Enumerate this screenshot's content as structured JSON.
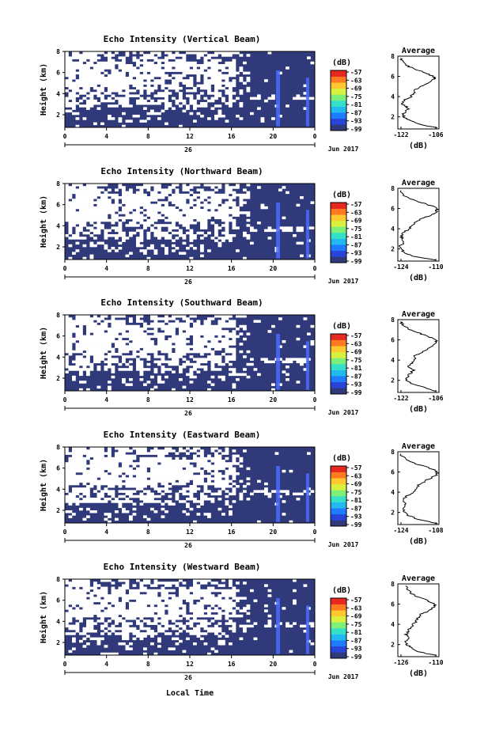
{
  "figure": {
    "xlabel": "Local Time",
    "date_label": "Jun 2017",
    "colors": {
      "background_echo": "#303a7a",
      "strong_echo": "#4a6cff",
      "line": "#000000",
      "colorscale": [
        "#303a7a",
        "#2945d8",
        "#1f7cff",
        "#22b8f0",
        "#35e0c8",
        "#7df07a",
        "#d8f040",
        "#ffc830",
        "#ff7a20",
        "#e8281e"
      ]
    }
  },
  "chart_data": [
    {
      "type": "heatmap",
      "title": "Echo Intensity (Vertical Beam)",
      "ylabel": "Height (km)",
      "x_ticks": [
        "0",
        "4",
        "8",
        "12",
        "16",
        "20",
        "0"
      ],
      "day_label": "26",
      "y_ticks": [
        "2",
        "4",
        "6",
        "8"
      ],
      "ylim": [
        0.8,
        8
      ],
      "colorbar": {
        "label": "(dB)",
        "ticks": [
          "-57",
          "-63",
          "-69",
          "-75",
          "-81",
          "-87",
          "-93",
          "-99"
        ]
      },
      "profile": {
        "title": "Average",
        "xlabel": "(dB)",
        "xlim": [
          -122,
          -106
        ],
        "x_ticks": [
          "-122",
          "-106"
        ],
        "y_ticks": [
          "2",
          "4",
          "6",
          "8"
        ],
        "height": [
          0.9,
          1.3,
          1.7,
          2.0,
          2.3,
          2.7,
          3.0,
          3.3,
          3.7,
          4.0,
          4.3,
          4.7,
          5.0,
          5.3,
          5.7,
          5.9,
          6.2,
          6.5,
          6.8,
          7.1,
          7.5,
          7.8
        ],
        "values": [
          -106.5,
          -114,
          -118,
          -119.5,
          -120,
          -118,
          -118.5,
          -120.5,
          -119,
          -117,
          -116,
          -115,
          -113,
          -110,
          -108,
          -107.5,
          -110,
          -113,
          -116,
          -119,
          -120.5,
          -121
        ]
      }
    },
    {
      "type": "heatmap",
      "title": "Echo Intensity (Northward Beam)",
      "ylabel": "Height (km)",
      "x_ticks": [
        "0",
        "4",
        "8",
        "12",
        "16",
        "20",
        "0"
      ],
      "day_label": "26",
      "y_ticks": [
        "2",
        "4",
        "6",
        "8"
      ],
      "ylim": [
        0.8,
        8
      ],
      "colorbar": {
        "label": "(dB)",
        "ticks": [
          "-57",
          "-63",
          "-69",
          "-75",
          "-81",
          "-87",
          "-93",
          "-99"
        ]
      },
      "profile": {
        "title": "Average",
        "xlabel": "(dB)",
        "xlim": [
          -124,
          -110
        ],
        "x_ticks": [
          "-124",
          "-110"
        ],
        "y_ticks": [
          "2",
          "4",
          "6",
          "8"
        ],
        "height": [
          0.9,
          1.3,
          1.7,
          2.0,
          2.3,
          2.7,
          3.0,
          3.3,
          3.7,
          4.0,
          4.3,
          4.7,
          5.0,
          5.3,
          5.7,
          5.9,
          6.2,
          6.5,
          6.8,
          7.1,
          7.5,
          7.8
        ],
        "values": [
          -111,
          -119,
          -122,
          -122.5,
          -123,
          -122,
          -122.5,
          -123,
          -122,
          -120,
          -119,
          -118,
          -116,
          -113,
          -111,
          -110.5,
          -112,
          -115,
          -118,
          -121,
          -122.5,
          -123
        ]
      }
    },
    {
      "type": "heatmap",
      "title": "Echo Intensity (Southward Beam)",
      "ylabel": "Height (km)",
      "x_ticks": [
        "0",
        "4",
        "8",
        "12",
        "16",
        "20",
        "0"
      ],
      "day_label": "26",
      "y_ticks": [
        "2",
        "4",
        "6",
        "8"
      ],
      "ylim": [
        0.8,
        8
      ],
      "colorbar": {
        "label": "(dB)",
        "ticks": [
          "-57",
          "-63",
          "-69",
          "-75",
          "-81",
          "-87",
          "-93",
          "-99"
        ]
      },
      "profile": {
        "title": "Average",
        "xlabel": "(dB)",
        "xlim": [
          -122,
          -106
        ],
        "x_ticks": [
          "-122",
          "-106"
        ],
        "y_ticks": [
          "2",
          "4",
          "6",
          "8"
        ],
        "height": [
          0.9,
          1.3,
          1.7,
          2.0,
          2.3,
          2.7,
          3.0,
          3.3,
          3.7,
          4.0,
          4.3,
          4.7,
          5.0,
          5.3,
          5.7,
          5.9,
          6.2,
          6.5,
          6.8,
          7.1,
          7.5,
          7.8
        ],
        "values": [
          -107,
          -112,
          -117,
          -119,
          -118.5,
          -117,
          -116,
          -118,
          -116.5,
          -115,
          -116,
          -113,
          -111,
          -109,
          -107.5,
          -107,
          -109,
          -112,
          -115,
          -118,
          -120,
          -121
        ]
      }
    },
    {
      "type": "heatmap",
      "title": "Echo Intensity (Eastward Beam)",
      "ylabel": "Height (km)",
      "x_ticks": [
        "0",
        "4",
        "8",
        "12",
        "16",
        "20",
        "0"
      ],
      "day_label": "26",
      "y_ticks": [
        "2",
        "4",
        "6",
        "8"
      ],
      "ylim": [
        0.8,
        8
      ],
      "colorbar": {
        "label": "(dB)",
        "ticks": [
          "-57",
          "-63",
          "-69",
          "-75",
          "-81",
          "-87",
          "-93",
          "-99"
        ]
      },
      "profile": {
        "title": "Average",
        "xlabel": "(dB)",
        "xlim": [
          -124,
          -108
        ],
        "x_ticks": [
          "-124",
          "-108"
        ],
        "y_ticks": [
          "2",
          "4",
          "6",
          "8"
        ],
        "height": [
          0.9,
          1.3,
          1.7,
          2.0,
          2.3,
          2.7,
          3.0,
          3.3,
          3.7,
          4.0,
          4.3,
          4.7,
          5.0,
          5.3,
          5.7,
          5.9,
          6.2,
          6.5,
          6.8,
          7.1,
          7.5,
          7.8
        ],
        "values": [
          -108.5,
          -116,
          -120,
          -121.5,
          -122,
          -121,
          -121.5,
          -122,
          -120,
          -118,
          -117,
          -116,
          -114,
          -112,
          -109,
          -108.5,
          -110,
          -113,
          -117,
          -120,
          -122,
          -123
        ]
      }
    },
    {
      "type": "heatmap",
      "title": "Echo Intensity (Westward Beam)",
      "ylabel": "Height (km)",
      "x_ticks": [
        "0",
        "4",
        "8",
        "12",
        "16",
        "20",
        "0"
      ],
      "day_label": "26",
      "y_ticks": [
        "2",
        "4",
        "6",
        "8"
      ],
      "ylim": [
        0.8,
        8
      ],
      "colorbar": {
        "label": "(dB)",
        "ticks": [
          "-57",
          "-63",
          "-69",
          "-75",
          "-81",
          "-87",
          "-93",
          "-99"
        ]
      },
      "profile": {
        "title": "Average",
        "xlabel": "(dB)",
        "xlim": [
          -126,
          -110
        ],
        "x_ticks": [
          "-126",
          "-110"
        ],
        "y_ticks": [
          "2",
          "4",
          "6",
          "8"
        ],
        "height": [
          0.9,
          1.3,
          1.7,
          2.0,
          2.3,
          2.7,
          3.0,
          3.3,
          3.7,
          4.0,
          4.3,
          4.7,
          5.0,
          5.3,
          5.7,
          5.9,
          6.2,
          6.5,
          6.8,
          7.1,
          7.5,
          7.8
        ],
        "values": [
          -111,
          -118,
          -121,
          -122.5,
          -123,
          -122,
          -123,
          -122,
          -121,
          -120,
          -119,
          -118,
          -117,
          -114,
          -112,
          -111.5,
          -113,
          -116,
          -119,
          -121,
          -122.5,
          -123
        ]
      }
    }
  ]
}
